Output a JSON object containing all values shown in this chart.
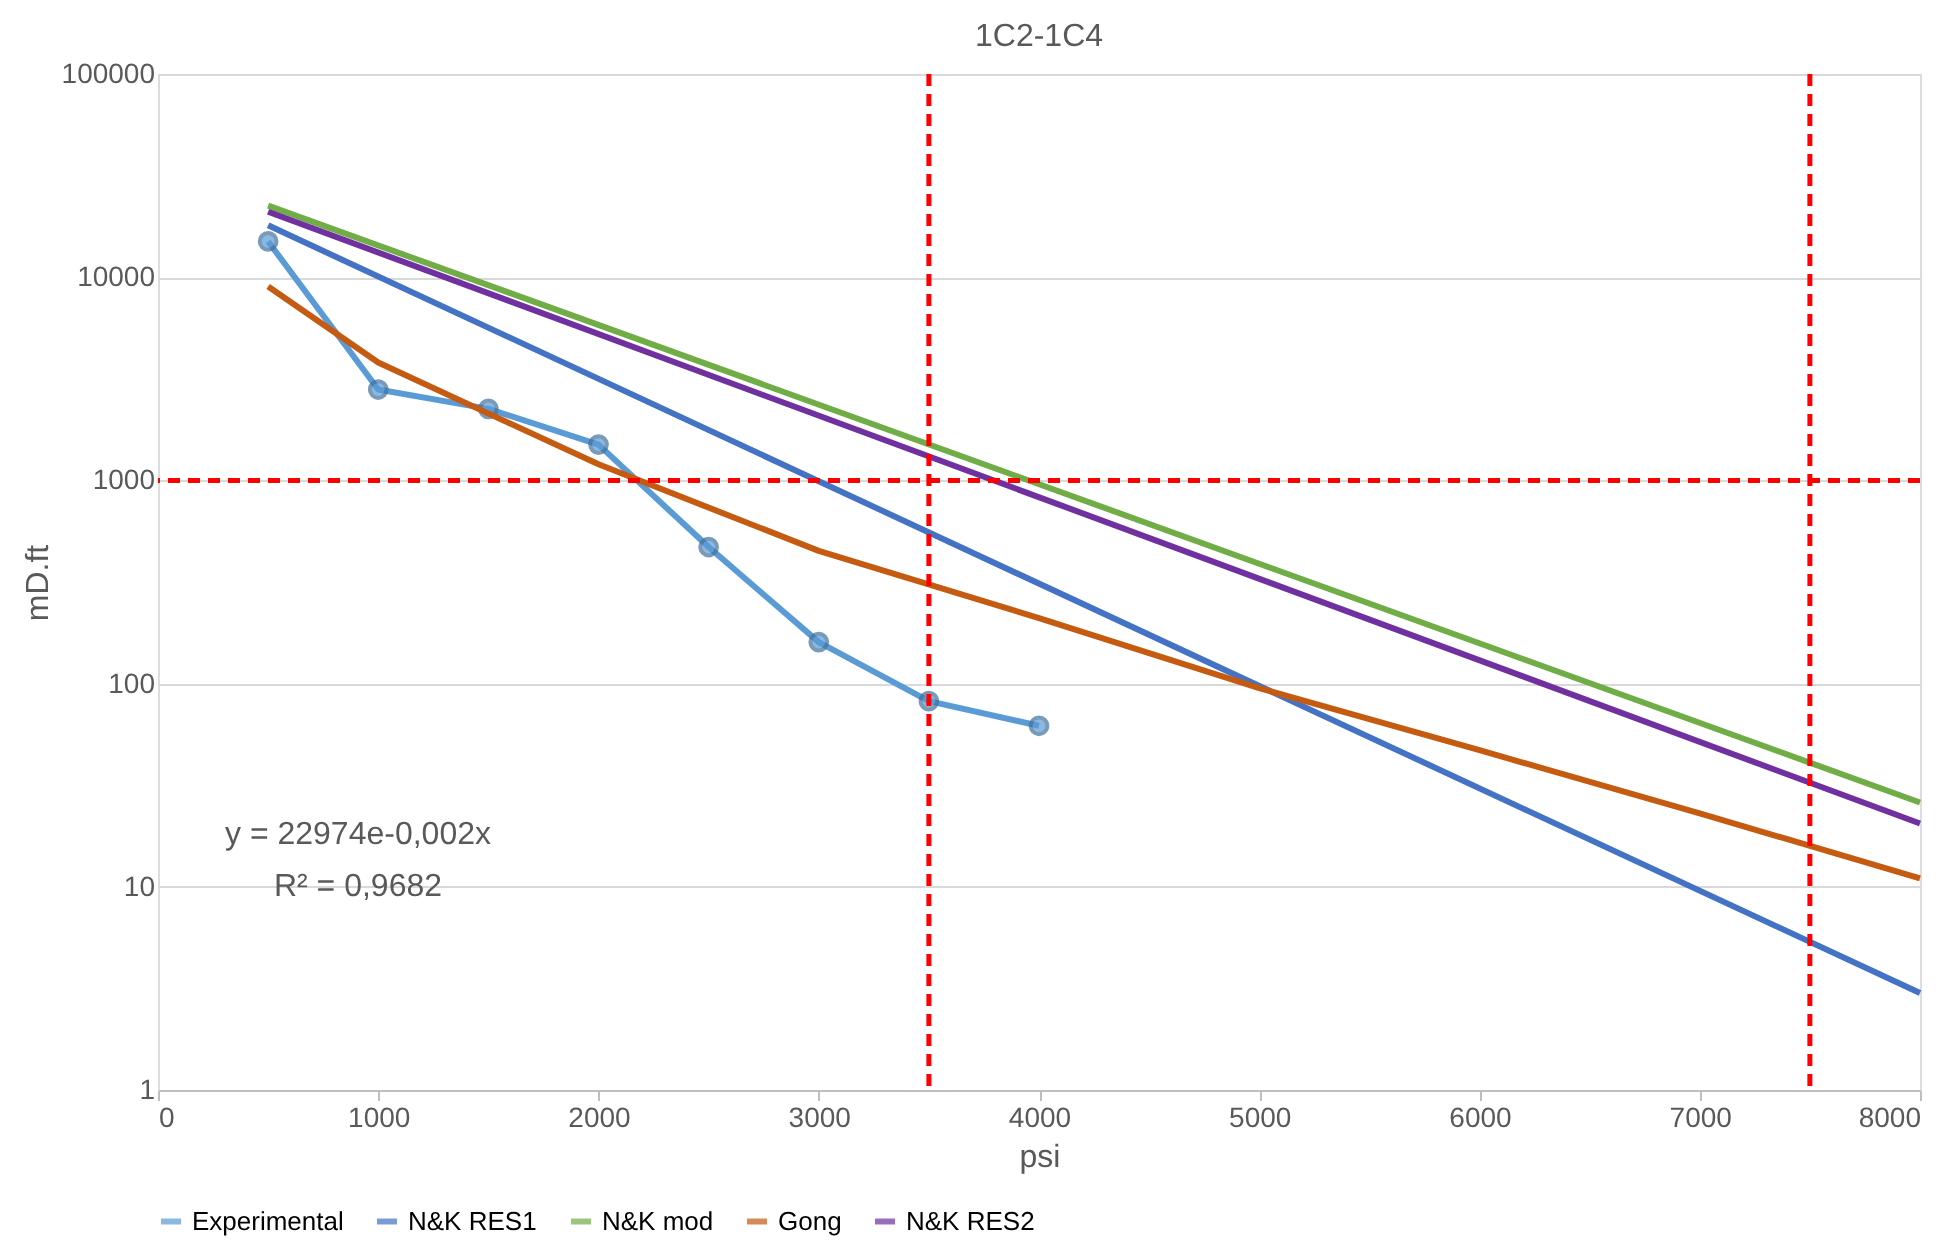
{
  "chart_data": {
    "type": "line",
    "title": "1C2-1C4",
    "xlabel": "psi",
    "ylabel": "mD.ft",
    "log": "y",
    "grid": "y",
    "legend": "bottom",
    "xlim": [
      0,
      8000
    ],
    "xticks": [
      0,
      1000,
      2000,
      3000,
      4000,
      5000,
      6000,
      7000,
      8000
    ],
    "ylim": [
      1,
      100000
    ],
    "yticks": [
      1,
      10,
      100,
      1000,
      10000,
      100000
    ],
    "series": [
      {
        "name": "Experimental",
        "color": "#5b9bd5",
        "marker": "circle",
        "x": [
          500,
          1000,
          1500,
          2000,
          2500,
          3000,
          3500,
          4000
        ],
        "values": [
          15000,
          2800,
          2250,
          1500,
          470,
          160,
          82,
          62
        ]
      },
      {
        "name": "N&K RES1",
        "color": "#4472c4",
        "marker": "none",
        "x": [
          500,
          8000
        ],
        "values": [
          18000,
          3
        ]
      },
      {
        "name": "N&K mod",
        "color": "#70ad47",
        "marker": "none",
        "x": [
          500,
          8000
        ],
        "values": [
          22500,
          26
        ]
      },
      {
        "name": "Gong",
        "color": "#c55a11",
        "marker": "none",
        "x": [
          500,
          1000,
          2000,
          3000,
          4000,
          5000,
          6000,
          7000,
          8000
        ],
        "values": [
          9000,
          3800,
          1200,
          450,
          210,
          95,
          47,
          23,
          11
        ]
      },
      {
        "name": "N&K RES2",
        "color": "#7030a0",
        "marker": "none",
        "x": [
          500,
          8000
        ],
        "values": [
          21000,
          20.5
        ]
      }
    ],
    "ref_lines": [
      {
        "axis": "y",
        "value": 1000,
        "color": "#ff0000",
        "line_style": "dashed"
      },
      {
        "axis": "x",
        "value": 3500,
        "color": "#ff0000",
        "line_style": "dashed"
      },
      {
        "axis": "x",
        "value": 7500,
        "color": "#ff0000",
        "line_style": "dashed"
      }
    ],
    "annotations": [
      "y = 22974e-0,002x",
      "R² = 0,9682"
    ]
  }
}
